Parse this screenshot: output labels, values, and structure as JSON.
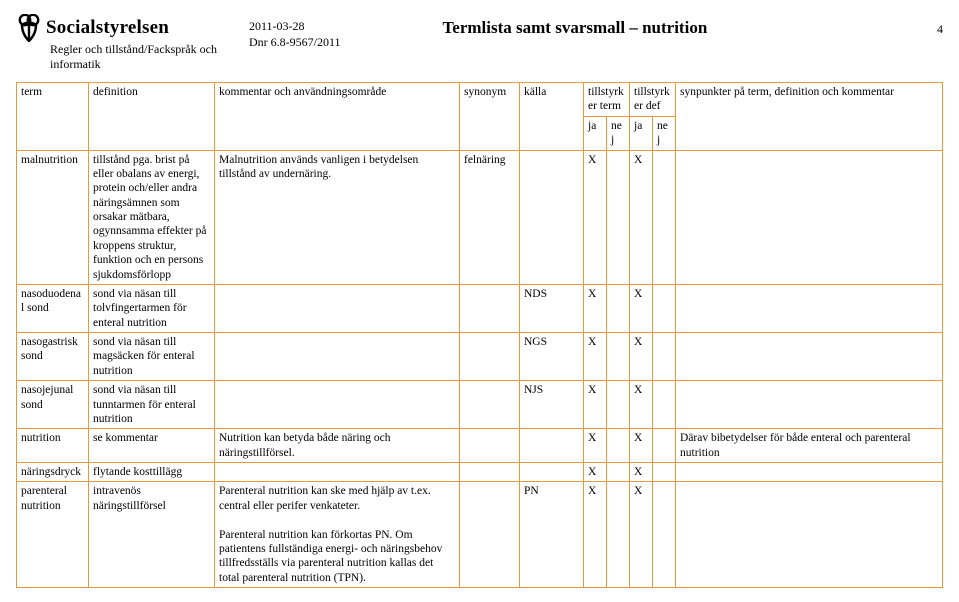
{
  "header": {
    "org": "Socialstyrelsen",
    "dept_line1": "Regler och tillstånd/Fackspråk och",
    "dept_line2": "informatik",
    "date": "2011-03-28",
    "dnr": "Dnr 6.8-9567/2011",
    "doc_title": "Termlista samt svarsmall – nutrition",
    "page_number": "4"
  },
  "columns": {
    "term": "term",
    "definition": "definition",
    "kommentar": "kommentar och användningsområde",
    "synonym": "synonym",
    "kalla": "källa",
    "tillstyrker_term": "tillstyrker term",
    "tillstyrker_def": "tillstyrker def",
    "synpunkter": "synpunkter på term, definition och kommentar",
    "ja": "ja",
    "nej": "nej"
  },
  "rows": [
    {
      "term": "malnutrition",
      "definition": "tillstånd pga. brist på eller obalans av energi, protein och/eller andra näringsämnen som orsakar mätbara, ogynnsamma effekter på kroppens struktur, funktion och en persons sjukdomsförlopp",
      "kommentar": "Malnutrition används vanligen i betydelsen tillstånd av undernäring.",
      "synonym": "felnäring",
      "kalla": "",
      "term_ja": "X",
      "term_nej": "",
      "def_ja": "X",
      "def_nej": "",
      "synpunkter": ""
    },
    {
      "term": "nasoduodenal sond",
      "definition": "sond via näsan till tolvfingertarmen för enteral nutrition",
      "kommentar": "",
      "synonym": "",
      "kalla": "NDS",
      "term_ja": "X",
      "term_nej": "",
      "def_ja": "X",
      "def_nej": "",
      "synpunkter": ""
    },
    {
      "term": "nasogastrisk sond",
      "definition": "sond via näsan till magsäcken för enteral nutrition",
      "kommentar": "",
      "synonym": "",
      "kalla": "NGS",
      "term_ja": "X",
      "term_nej": "",
      "def_ja": "X",
      "def_nej": "",
      "synpunkter": ""
    },
    {
      "term": "nasojejunal sond",
      "definition": "sond via näsan till tunntarmen för enteral nutrition",
      "kommentar": "",
      "synonym": "",
      "kalla": "NJS",
      "term_ja": "X",
      "term_nej": "",
      "def_ja": "X",
      "def_nej": "",
      "synpunkter": ""
    },
    {
      "term": "nutrition",
      "definition": "se kommentar",
      "kommentar": "Nutrition kan betyda både näring och näringstillförsel.",
      "synonym": "",
      "kalla": "",
      "term_ja": "X",
      "term_nej": "",
      "def_ja": "X",
      "def_nej": "",
      "synpunkter": "Därav bibetydelser för både enteral och parenteral nutrition"
    },
    {
      "term": "näringsdryck",
      "definition": "flytande kosttillägg",
      "kommentar": "",
      "synonym": "",
      "kalla": "",
      "term_ja": "X",
      "term_nej": "",
      "def_ja": "X",
      "def_nej": "",
      "synpunkter": ""
    },
    {
      "term": "parenteral nutrition",
      "definition": "intravenös näringstillförsel",
      "kommentar": "Parenteral nutrition kan ske med hjälp av t.ex. central eller perifer venkateter.\n\nParenteral nutrition kan förkortas PN. Om patientens fullständiga energi- och näringsbehov tillfredsställs via parenteral nutrition kallas det total parenteral nutrition (TPN).",
      "synonym": "",
      "kalla": "PN",
      "term_ja": "X",
      "term_nej": "",
      "def_ja": "X",
      "def_nej": "",
      "synpunkter": ""
    }
  ],
  "colors": {
    "border": "#e4993b",
    "text": "#000000",
    "background": "#ffffff"
  }
}
